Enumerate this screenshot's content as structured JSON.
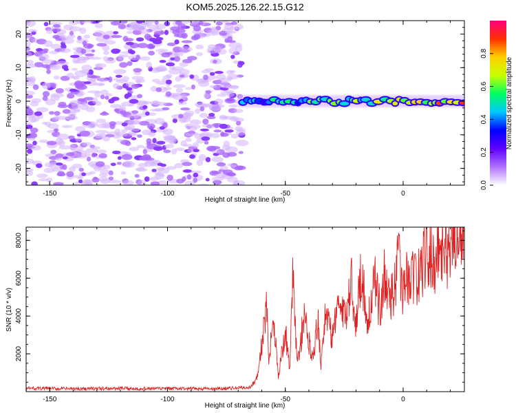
{
  "title": "KOM5.2025.126.22.15.G12",
  "chart_data": [
    {
      "type": "heatmap",
      "name": "spectrogram",
      "xlabel": "Height of straight line (km)",
      "ylabel": "Frequency (Hz)",
      "xlim": [
        -160,
        26
      ],
      "ylim": [
        -25,
        24
      ],
      "xticks": [
        -150,
        -100,
        -50,
        0
      ],
      "xtick_labels": [
        "-150",
        "-100",
        "-50",
        "0"
      ],
      "yticks": [
        -20,
        -10,
        0,
        10,
        20
      ],
      "ytick_labels": [
        "-20",
        "-10",
        "0",
        "10",
        "20"
      ],
      "noise_region_x": [
        -160,
        -70
      ],
      "signal_start_x": -70,
      "signal_frequency_hz": 0,
      "colorbar": {
        "label": "Normalized spectral amplitude",
        "range": [
          0,
          1
        ],
        "ticks": [
          0.0,
          0.2,
          0.4,
          0.6,
          0.8
        ],
        "tick_labels": [
          "0.0",
          "0.2",
          "0.4",
          "0.6",
          "0.8"
        ],
        "colors": [
          "#ffffff",
          "#b070ff",
          "#6000ff",
          "#0000ff",
          "#00c8ff",
          "#00ff60",
          "#c8ff00",
          "#ffd000",
          "#ff3000",
          "#ff0080"
        ]
      }
    },
    {
      "type": "line",
      "name": "snr",
      "xlabel": "Height of straight line (km)",
      "ylabel": "SNR (10 * v/v)",
      "xlim": [
        -160,
        26
      ],
      "ylim": [
        0,
        8700
      ],
      "xticks": [
        -150,
        -100,
        -50,
        0
      ],
      "xtick_labels": [
        "-150",
        "-100",
        "-50",
        "0"
      ],
      "yticks": [
        2000,
        4000,
        6000,
        8000
      ],
      "ytick_labels": [
        "2000",
        "4000",
        "6000",
        "8000"
      ],
      "color": "#e02020",
      "series": [
        {
          "name": "SNR envelope",
          "x": [
            -160,
            -140,
            -120,
            -100,
            -80,
            -65,
            -62,
            -60,
            -58,
            -57,
            -55,
            -53,
            -50,
            -48,
            -47,
            -45,
            -42,
            -40,
            -38,
            -36,
            -35,
            -33,
            -30,
            -28,
            -25,
            -22,
            -20,
            -18,
            -15,
            -12,
            -10,
            -8,
            -5,
            -2,
            0,
            3,
            6,
            10,
            13,
            16,
            19,
            22,
            26
          ],
          "y": [
            180,
            150,
            170,
            160,
            150,
            220,
            700,
            2500,
            4400,
            1500,
            4200,
            800,
            3200,
            1000,
            6300,
            1500,
            3900,
            2600,
            2000,
            4100,
            1200,
            4300,
            2800,
            4800,
            3800,
            5900,
            3500,
            6400,
            3800,
            5700,
            4400,
            6000,
            4900,
            6900,
            5400,
            6400,
            5900,
            7400,
            6900,
            8000,
            7300,
            8600,
            8200
          ]
        }
      ]
    }
  ]
}
